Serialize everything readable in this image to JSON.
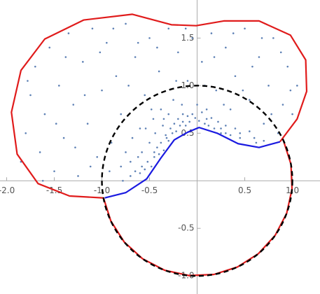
{
  "chart_data": {
    "type": "scatter",
    "xlim": [
      -2.07,
      1.29
    ],
    "ylim": [
      -1.19,
      1.9
    ],
    "xticks": [
      {
        "value": -2,
        "label": "-2.0"
      },
      {
        "value": -1.5,
        "label": "-1.5"
      },
      {
        "value": -1,
        "label": "-1.0"
      },
      {
        "value": -0.5,
        "label": "-0.5"
      },
      0.5,
      {
        "value": 1,
        "label": "1.0"
      }
    ],
    "yticks": [
      {
        "value": -1,
        "label": "-1.0"
      },
      -0.5,
      0.5,
      {
        "value": 1,
        "label": "1.0"
      },
      1.5
    ],
    "series": [
      {
        "type": "scatter",
        "color": "#5e81b5",
        "x": [
          -1.8,
          -1.75,
          -1.7,
          -1.65,
          -1.6,
          -1.55,
          -1.5,
          -1.45,
          -1.4,
          -1.35,
          -1.3,
          -1.25,
          -1.2,
          -1.15,
          -1.1,
          -1.05,
          -1.0,
          -0.95,
          -0.9,
          -0.85,
          -0.8,
          -0.75,
          -0.7,
          -0.65,
          -0.6,
          -0.55,
          -0.5,
          -0.45,
          -0.4,
          -0.35,
          -0.3,
          -0.25,
          -0.2,
          -0.15,
          -0.1,
          -0.05,
          0.0,
          0.05,
          0.1,
          0.15,
          0.2,
          0.25,
          0.3,
          0.35,
          0.4,
          0.45,
          0.5,
          0.55,
          0.6,
          0.65,
          0.7,
          0.75,
          0.8,
          0.85,
          0.9,
          0.95,
          1.0,
          1.05,
          0.3,
          0.7,
          -1.85,
          -1.78,
          -1.62,
          -1.48,
          -1.38,
          -1.28,
          -1.18,
          -1.12,
          -1.02,
          -0.92,
          -0.88,
          -0.78,
          -0.72,
          -0.62,
          -0.58,
          -0.48,
          -0.42,
          -0.32,
          -0.22,
          -0.12,
          0.08,
          0.18,
          0.28,
          0.38,
          0.48,
          0.58,
          0.68,
          0.78,
          0.88,
          0.98,
          -0.7,
          -0.65,
          -0.6,
          -0.55,
          -0.52,
          -0.48,
          -0.45,
          -0.42,
          -0.4,
          -0.38,
          -0.35,
          -0.33,
          -0.3,
          -0.28,
          -0.26,
          -0.24,
          -0.22,
          -0.2,
          -0.18,
          -0.15,
          -0.12,
          -0.1,
          -0.08,
          -0.05,
          -0.02,
          0.02,
          0.05,
          0.08,
          0.12,
          0.15,
          0.18,
          0.22,
          0.25,
          0.3,
          0.35,
          0.4,
          0.45,
          0.55,
          0.62,
          -0.58,
          -0.5,
          -0.44,
          -0.36,
          -0.8,
          -0.75,
          -0.68,
          -0.62,
          -0.54,
          -0.46,
          -0.38,
          -0.3,
          -0.16,
          0.1
        ],
        "y": [
          0.5,
          0.9,
          1.2,
          0.3,
          0.7,
          1.4,
          0.1,
          1.0,
          0.45,
          1.55,
          0.8,
          0.05,
          1.25,
          0.6,
          1.6,
          0.25,
          0.95,
          1.45,
          0.4,
          1.1,
          0.7,
          1.65,
          0.2,
          1.3,
          0.55,
          0.9,
          1.5,
          0.3,
          1.15,
          0.65,
          1.6,
          0.85,
          1.35,
          0.7,
          1.05,
          1.5,
          0.8,
          1.25,
          0.65,
          1.55,
          0.95,
          0.55,
          1.4,
          0.75,
          1.1,
          0.5,
          1.6,
          0.85,
          0.45,
          1.3,
          0.6,
          1.0,
          1.5,
          0.5,
          0.8,
          1.2,
          0.7,
          1.0,
          0.5,
          0.42,
          0.2,
          1.05,
          0.0,
          0.6,
          1.3,
          0.35,
          0.9,
          0.15,
          1.35,
          0.1,
          1.6,
          0.0,
          1.0,
          1.45,
          0.15,
          0.75,
          1.4,
          0.45,
          1.05,
          1.6,
          1.0,
          1.3,
          0.8,
          1.55,
          0.95,
          1.2,
          1.5,
          0.7,
          1.35,
          0.95,
          0.05,
          0.1,
          0.08,
          0.12,
          0.2,
          0.15,
          0.25,
          0.35,
          0.28,
          0.4,
          0.32,
          0.48,
          0.42,
          0.55,
          0.5,
          0.6,
          0.52,
          0.65,
          0.58,
          0.62,
          0.58,
          0.68,
          0.62,
          0.7,
          0.66,
          0.63,
          0.72,
          0.6,
          0.58,
          0.66,
          0.55,
          0.62,
          0.5,
          0.58,
          0.48,
          0.55,
          0.45,
          0.52,
          0.4,
          0.3,
          0.4,
          0.5,
          0.58,
          0.15,
          0.3,
          0.45,
          0.25,
          0.55,
          0.65,
          0.75,
          0.7,
          0.8,
          0.75
        ]
      },
      {
        "type": "line",
        "color": "#e01b1b",
        "x": [
          -0.985,
          -1.34,
          -1.67,
          -1.89,
          -1.95,
          -1.85,
          -1.6,
          -1.19,
          -0.68,
          -0.27,
          -0.01,
          0.28,
          0.65,
          0.98,
          1.14,
          1.15,
          1.05,
          0.87
        ],
        "y": [
          -0.18,
          -0.16,
          -0.03,
          0.28,
          0.72,
          1.16,
          1.49,
          1.69,
          1.75,
          1.64,
          1.63,
          1.68,
          1.68,
          1.53,
          1.27,
          0.94,
          0.65,
          0.41
        ]
      },
      {
        "type": "line",
        "color": "#e01b1b",
        "x": [
          -0.985,
          -0.906,
          -0.766,
          -0.574,
          -0.342,
          -0.087,
          0.174,
          0.423,
          0.643,
          0.819,
          0.94,
          0.996,
          0.985,
          0.906
        ],
        "y": [
          -0.174,
          -0.423,
          -0.643,
          -0.819,
          -0.94,
          -0.996,
          -0.985,
          -0.906,
          -0.766,
          -0.574,
          -0.342,
          -0.087,
          0.174,
          0.423
        ]
      },
      {
        "type": "line",
        "color": "#1a1ae0",
        "x": [
          0.87,
          0.65,
          0.43,
          0.21,
          0.02,
          -0.1,
          -0.24,
          -0.38,
          -0.53,
          -0.75,
          -0.97
        ],
        "y": [
          0.41,
          0.35,
          0.39,
          0.5,
          0.56,
          0.51,
          0.43,
          0.24,
          0.02,
          -0.125,
          -0.18
        ]
      },
      {
        "type": "circle",
        "color": "#000000",
        "dashed": true,
        "center": [
          0,
          0
        ],
        "radius": 1
      }
    ]
  }
}
